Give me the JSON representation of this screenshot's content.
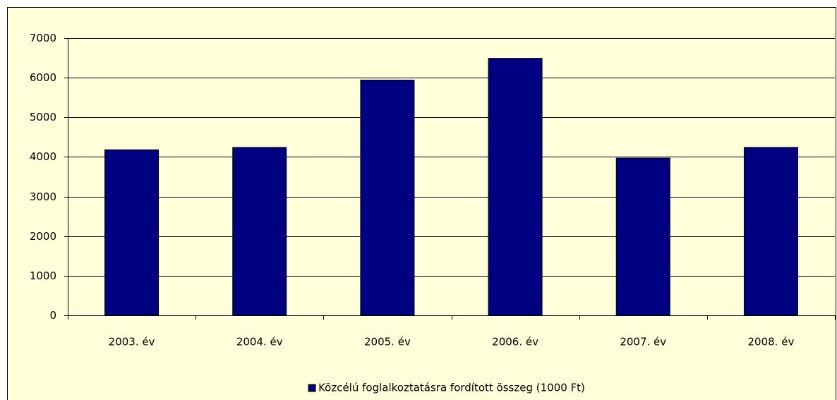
{
  "chart_data": {
    "type": "bar",
    "categories": [
      "2003. év",
      "2004. év",
      "2005. év",
      "2006. év",
      "2007. év",
      "2008. év"
    ],
    "series": [
      {
        "name": "Közcélú foglalkoztatásra fordított összeg (1000 Ft)",
        "color": "#000080",
        "values": [
          4180,
          4240,
          5940,
          6490,
          3970,
          4240
        ]
      }
    ],
    "ylim": [
      0,
      7000
    ],
    "yticks": [
      0,
      1000,
      2000,
      3000,
      4000,
      5000,
      6000,
      7000
    ],
    "grid": true,
    "legend": "bottom"
  }
}
